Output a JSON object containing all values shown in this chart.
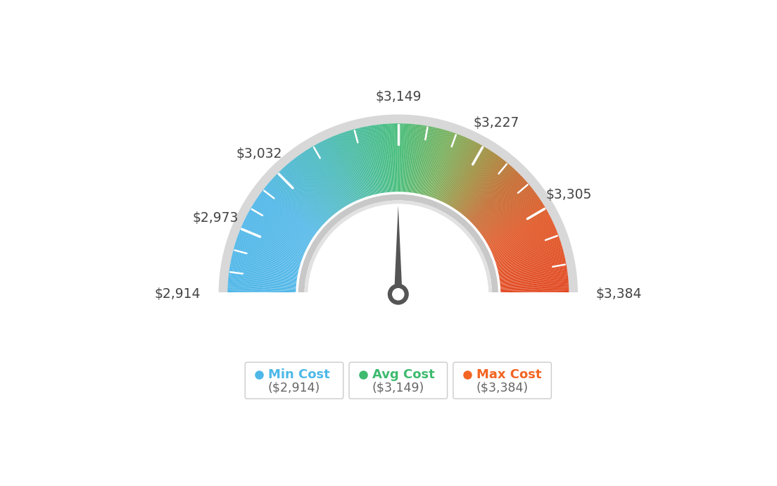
{
  "min_value": 2914,
  "avg_value": 3149,
  "max_value": 3384,
  "tick_labels": [
    "$2,914",
    "$2,973",
    "$3,032",
    "$3,149",
    "$3,227",
    "$3,305",
    "$3,384"
  ],
  "tick_values": [
    2914,
    2973,
    3032,
    3149,
    3227,
    3305,
    3384
  ],
  "legend": [
    {
      "label": "Min Cost",
      "value": "($2,914)",
      "color": "#4db8e8"
    },
    {
      "label": "Avg Cost",
      "value": "($3,149)",
      "color": "#3dba6e"
    },
    {
      "label": "Max Cost",
      "value": "($3,384)",
      "color": "#f26522"
    }
  ],
  "background_color": "#ffffff",
  "needle_value": 3149,
  "color_stops": [
    [
      0.0,
      [
        78,
        182,
        232
      ]
    ],
    [
      0.2,
      [
        78,
        182,
        232
      ]
    ],
    [
      0.35,
      [
        72,
        185,
        185
      ]
    ],
    [
      0.5,
      [
        68,
        188,
        120
      ]
    ],
    [
      0.6,
      [
        120,
        175,
        90
      ]
    ],
    [
      0.68,
      [
        160,
        140,
        60
      ]
    ],
    [
      0.75,
      [
        195,
        105,
        45
      ]
    ],
    [
      0.85,
      [
        225,
        85,
        35
      ]
    ],
    [
      1.0,
      [
        225,
        70,
        30
      ]
    ]
  ]
}
